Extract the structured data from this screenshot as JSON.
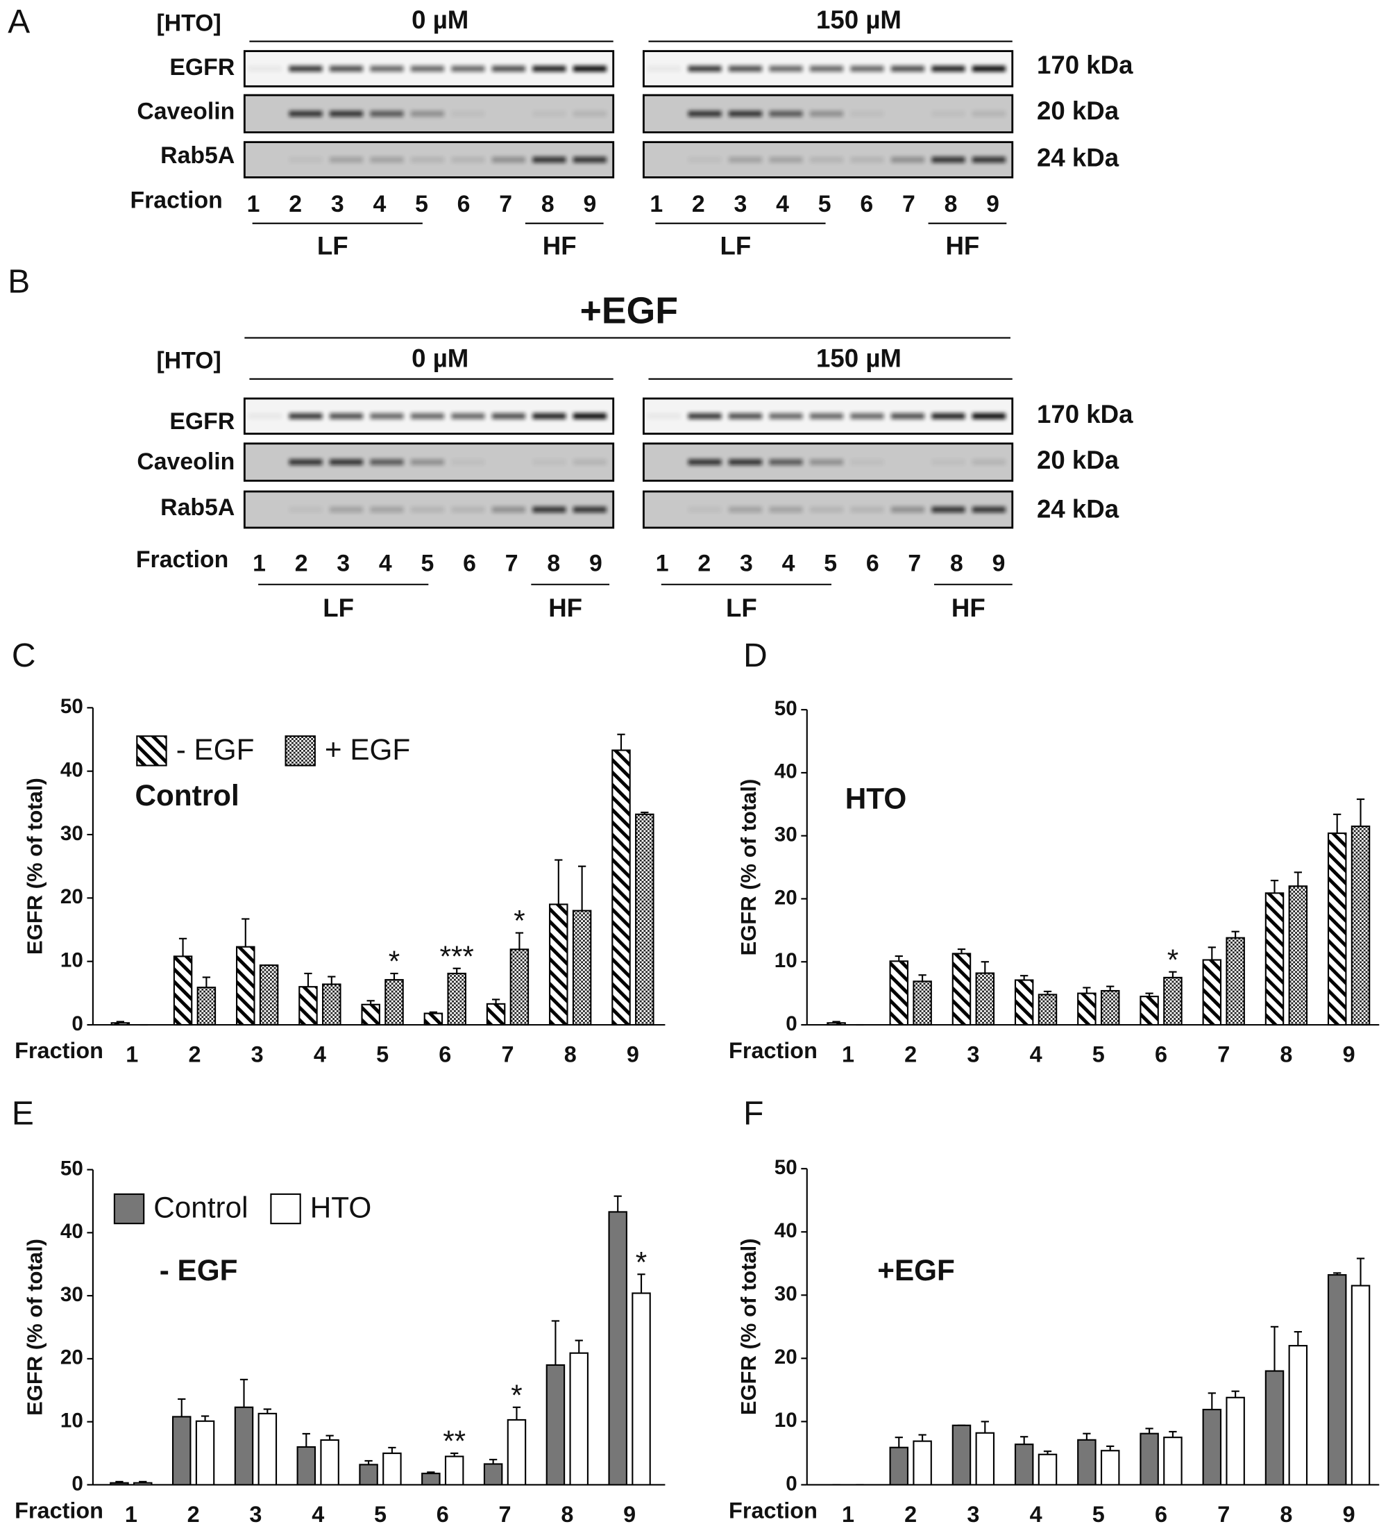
{
  "panel_labels": [
    "A",
    "B",
    "C",
    "D",
    "E",
    "F"
  ],
  "blots": [
    {
      "hto_label": "[HTO]",
      "conditions": [
        "0 µM",
        "150 µM"
      ],
      "rows": [
        {
          "name": "EGFR",
          "size": "170 kDa"
        },
        {
          "name": "Caveolin",
          "size": "20 kDa"
        },
        {
          "name": "Rab5A",
          "size": "24 kDa"
        }
      ],
      "fraction_label": "Fraction",
      "fractions": [
        "1",
        "2",
        "3",
        "4",
        "5",
        "6",
        "7",
        "8",
        "9"
      ],
      "groups": [
        "LF",
        "HF"
      ]
    },
    {
      "treatment": "+EGF",
      "hto_label": "[HTO]",
      "conditions": [
        "0 µM",
        "150 µM"
      ],
      "rows": [
        {
          "name": "EGFR",
          "size": "170 kDa"
        },
        {
          "name": "Caveolin",
          "size": "20 kDa"
        },
        {
          "name": "Rab5A",
          "size": "24 kDa"
        }
      ],
      "fraction_label": "Fraction",
      "fractions": [
        "1",
        "2",
        "3",
        "4",
        "5",
        "6",
        "7",
        "8",
        "9"
      ],
      "groups": [
        "LF",
        "HF"
      ]
    }
  ],
  "chart_data": [
    {
      "type": "bar",
      "inset_label": "Control",
      "y_label": "EGFR (% of total)",
      "x_label": "Fraction",
      "categories": [
        "1",
        "2",
        "3",
        "4",
        "5",
        "6",
        "7",
        "8",
        "9"
      ],
      "ylim": [
        0,
        50
      ],
      "yticks": [
        0,
        10,
        20,
        30,
        40,
        50
      ],
      "legend": "upper left",
      "series": [
        {
          "name": "- EGF",
          "pattern": "hatch",
          "color": "#000000",
          "values": [
            0.3,
            10.8,
            12.3,
            6.0,
            3.2,
            1.8,
            3.3,
            19.0,
            43.3
          ],
          "errors": [
            0.2,
            2.8,
            4.4,
            2.1,
            0.6,
            0.2,
            0.7,
            7.0,
            2.5
          ],
          "markers": [
            null,
            null,
            null,
            null,
            null,
            null,
            null,
            null,
            null
          ]
        },
        {
          "name": "+ EGF",
          "pattern": "check",
          "color": "#000000",
          "values": [
            0,
            5.9,
            9.4,
            6.4,
            7.1,
            8.1,
            11.9,
            18.0,
            33.2
          ],
          "errors": [
            0,
            1.6,
            0,
            1.2,
            1.0,
            0.8,
            2.6,
            7.0,
            0.3
          ],
          "markers": [
            null,
            null,
            null,
            null,
            "*",
            "***",
            "*",
            null,
            null
          ]
        }
      ]
    },
    {
      "type": "bar",
      "inset_label": "HTO",
      "y_label": "EGFR (% of total)",
      "x_label": "Fraction",
      "categories": [
        "1",
        "2",
        "3",
        "4",
        "5",
        "6",
        "7",
        "8",
        "9"
      ],
      "ylim": [
        0,
        50
      ],
      "yticks": [
        0,
        10,
        20,
        30,
        40,
        50
      ],
      "series": [
        {
          "pattern": "hatch",
          "color": "#000000",
          "values": [
            0.3,
            10.1,
            11.3,
            7.1,
            5.0,
            4.5,
            10.3,
            20.9,
            30.4
          ],
          "errors": [
            0.2,
            0.8,
            0.7,
            0.7,
            0.9,
            0.5,
            2.0,
            2.0,
            3.0
          ],
          "markers": [
            null,
            null,
            null,
            null,
            null,
            null,
            null,
            null,
            null
          ]
        },
        {
          "pattern": "check",
          "color": "#000000",
          "values": [
            0,
            6.9,
            8.2,
            4.8,
            5.4,
            7.5,
            13.8,
            22.0,
            31.5
          ],
          "errors": [
            0,
            1.0,
            1.8,
            0.5,
            0.7,
            0.9,
            1.0,
            2.2,
            4.3
          ],
          "markers": [
            null,
            null,
            null,
            null,
            null,
            "*",
            null,
            null,
            null
          ]
        }
      ]
    },
    {
      "type": "bar",
      "inset_label": "- EGF",
      "y_label": "EGFR (% of total)",
      "x_label": "Fraction",
      "categories": [
        "1",
        "2",
        "3",
        "4",
        "5",
        "6",
        "7",
        "8",
        "9"
      ],
      "ylim": [
        0,
        50
      ],
      "yticks": [
        0,
        10,
        20,
        30,
        40,
        50
      ],
      "legend": "upper left",
      "series": [
        {
          "name": "Control",
          "pattern": "solid",
          "color": "#777777",
          "values": [
            0.3,
            10.8,
            12.3,
            6.0,
            3.2,
            1.8,
            3.3,
            19.0,
            43.3
          ],
          "errors": [
            0.2,
            2.8,
            4.4,
            2.1,
            0.6,
            0.2,
            0.7,
            7.0,
            2.5
          ],
          "markers": [
            null,
            null,
            null,
            null,
            null,
            null,
            null,
            null,
            null
          ]
        },
        {
          "name": "HTO",
          "pattern": "solid",
          "color": "#ffffff",
          "values": [
            0.3,
            10.1,
            11.3,
            7.1,
            5.0,
            4.5,
            10.3,
            20.9,
            30.4
          ],
          "errors": [
            0.2,
            0.8,
            0.7,
            0.7,
            0.9,
            0.5,
            2.0,
            2.0,
            3.0
          ],
          "markers": [
            null,
            null,
            null,
            null,
            null,
            "**",
            "*",
            null,
            "*"
          ]
        }
      ]
    },
    {
      "type": "bar",
      "inset_label": "+EGF",
      "y_label": "EGFR (% of total)",
      "x_label": "Fraction",
      "categories": [
        "1",
        "2",
        "3",
        "4",
        "5",
        "6",
        "7",
        "8",
        "9"
      ],
      "ylim": [
        0,
        50
      ],
      "yticks": [
        0,
        10,
        20,
        30,
        40,
        50
      ],
      "series": [
        {
          "pattern": "solid",
          "color": "#777777",
          "values": [
            0,
            5.9,
            9.4,
            6.4,
            7.1,
            8.1,
            11.9,
            18.0,
            33.2
          ],
          "errors": [
            0,
            1.6,
            0,
            1.2,
            1.0,
            0.8,
            2.6,
            7.0,
            0.3
          ],
          "markers": [
            null,
            null,
            null,
            null,
            null,
            null,
            null,
            null,
            null
          ]
        },
        {
          "pattern": "solid",
          "color": "#ffffff",
          "values": [
            0,
            6.9,
            8.2,
            4.8,
            5.4,
            7.5,
            13.8,
            22.0,
            31.5
          ],
          "errors": [
            0,
            1.0,
            1.8,
            0.5,
            0.7,
            0.9,
            1.0,
            2.2,
            4.3
          ],
          "markers": [
            null,
            null,
            null,
            null,
            null,
            null,
            null,
            null,
            null
          ]
        }
      ]
    }
  ]
}
